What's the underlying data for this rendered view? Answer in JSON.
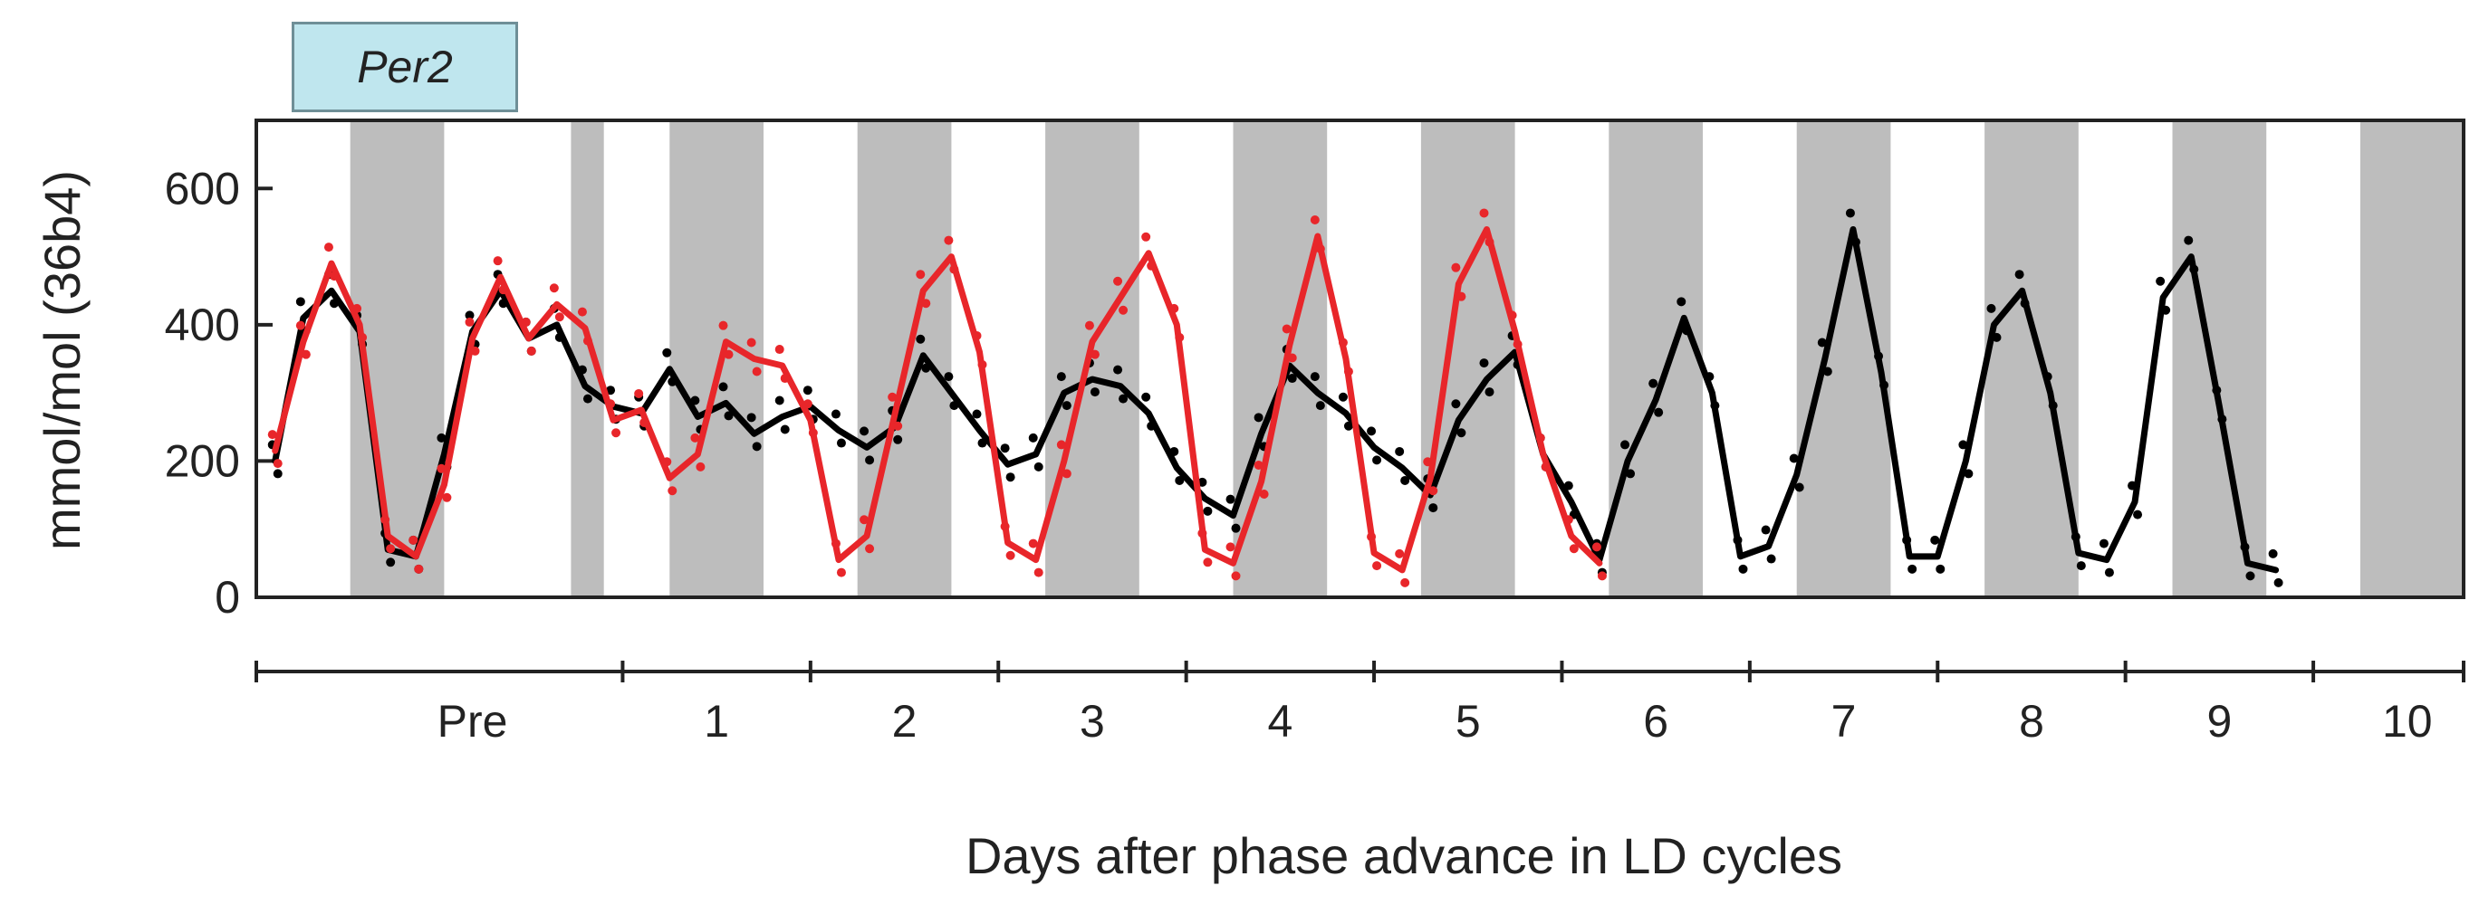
{
  "gene_label": "Per2",
  "chart_data": {
    "type": "line",
    "title": "",
    "ylabel": "mmol/mol (36b4)",
    "xlabel": "Days after phase advance in LD cycles",
    "ylim": [
      0,
      700
    ],
    "xlim": [
      -0.5,
      23.0
    ],
    "x_unit": "hours/4 index",
    "y_ticks": [
      0,
      200,
      400,
      600
    ],
    "day_labels": [
      {
        "label": "Pre",
        "x": 1.8
      },
      {
        "label": "1",
        "x": 4.4
      },
      {
        "label": "2",
        "x": 6.4
      },
      {
        "label": "3",
        "x": 8.4
      },
      {
        "label": "4",
        "x": 10.4
      },
      {
        "label": "5",
        "x": 12.4
      },
      {
        "label": "6",
        "x": 14.4
      },
      {
        "label": "7",
        "x": 16.4
      },
      {
        "label": "8",
        "x": 18.4
      },
      {
        "label": "9",
        "x": 20.4
      },
      {
        "label": "10",
        "x": 22.4
      }
    ],
    "day_ticks": [
      -0.5,
      3.4,
      5.4,
      7.4,
      9.4,
      11.4,
      13.4,
      15.4,
      17.4,
      19.4,
      21.4,
      23.0
    ],
    "dark_bands": [
      [
        0.5,
        1.5
      ],
      [
        2.85,
        3.2
      ],
      [
        3.9,
        4.9
      ],
      [
        5.9,
        6.9
      ],
      [
        7.9,
        8.9
      ],
      [
        9.9,
        10.9
      ],
      [
        11.9,
        12.9
      ],
      [
        13.9,
        14.9
      ],
      [
        15.9,
        16.9
      ],
      [
        17.9,
        18.9
      ],
      [
        19.9,
        20.9
      ],
      [
        21.9,
        23.0
      ]
    ],
    "series": [
      {
        "color": "#000000",
        "points": [
          [
            -0.3,
            200
          ],
          [
            0.0,
            410
          ],
          [
            0.3,
            450
          ],
          [
            0.6,
            390
          ],
          [
            0.9,
            70
          ],
          [
            1.2,
            60
          ],
          [
            1.5,
            210
          ],
          [
            1.8,
            390
          ],
          [
            2.1,
            450
          ],
          [
            2.4,
            380
          ],
          [
            2.7,
            400
          ],
          [
            3.0,
            310
          ],
          [
            3.3,
            280
          ],
          [
            3.6,
            270
          ],
          [
            3.9,
            335
          ],
          [
            4.2,
            265
          ],
          [
            4.5,
            285
          ],
          [
            4.8,
            240
          ],
          [
            5.1,
            265
          ],
          [
            5.4,
            280
          ],
          [
            5.7,
            245
          ],
          [
            6.0,
            220
          ],
          [
            6.3,
            250
          ],
          [
            6.6,
            355
          ],
          [
            6.9,
            300
          ],
          [
            7.2,
            245
          ],
          [
            7.5,
            195
          ],
          [
            7.8,
            210
          ],
          [
            8.1,
            300
          ],
          [
            8.4,
            320
          ],
          [
            8.7,
            310
          ],
          [
            9.0,
            270
          ],
          [
            9.3,
            190
          ],
          [
            9.6,
            145
          ],
          [
            9.9,
            120
          ],
          [
            10.2,
            240
          ],
          [
            10.5,
            340
          ],
          [
            10.8,
            300
          ],
          [
            11.1,
            270
          ],
          [
            11.4,
            220
          ],
          [
            11.7,
            190
          ],
          [
            12.0,
            150
          ],
          [
            12.3,
            260
          ],
          [
            12.6,
            320
          ],
          [
            12.9,
            360
          ],
          [
            13.2,
            210
          ],
          [
            13.5,
            140
          ],
          [
            13.8,
            55
          ],
          [
            14.1,
            200
          ],
          [
            14.4,
            290
          ],
          [
            14.7,
            410
          ],
          [
            15.0,
            300
          ],
          [
            15.3,
            60
          ],
          [
            15.6,
            75
          ],
          [
            15.9,
            180
          ],
          [
            16.2,
            350
          ],
          [
            16.5,
            540
          ],
          [
            16.8,
            330
          ],
          [
            17.1,
            60
          ],
          [
            17.4,
            60
          ],
          [
            17.7,
            200
          ],
          [
            18.0,
            400
          ],
          [
            18.3,
            450
          ],
          [
            18.6,
            300
          ],
          [
            18.9,
            65
          ],
          [
            19.2,
            55
          ],
          [
            19.5,
            140
          ],
          [
            19.8,
            440
          ],
          [
            20.1,
            500
          ],
          [
            20.4,
            280
          ],
          [
            20.7,
            50
          ],
          [
            21.0,
            40
          ]
        ]
      },
      {
        "color": "#e8262a",
        "points": [
          [
            -0.3,
            215
          ],
          [
            0.0,
            375
          ],
          [
            0.3,
            490
          ],
          [
            0.6,
            400
          ],
          [
            0.9,
            90
          ],
          [
            1.2,
            60
          ],
          [
            1.5,
            165
          ],
          [
            1.8,
            380
          ],
          [
            2.1,
            470
          ],
          [
            2.4,
            380
          ],
          [
            2.7,
            430
          ],
          [
            3.0,
            395
          ],
          [
            3.3,
            260
          ],
          [
            3.6,
            275
          ],
          [
            3.9,
            175
          ],
          [
            4.2,
            210
          ],
          [
            4.5,
            375
          ],
          [
            4.8,
            350
          ],
          [
            5.1,
            340
          ],
          [
            5.4,
            260
          ],
          [
            5.7,
            55
          ],
          [
            6.0,
            90
          ],
          [
            6.3,
            270
          ],
          [
            6.6,
            450
          ],
          [
            6.9,
            500
          ],
          [
            7.2,
            360
          ],
          [
            7.5,
            80
          ],
          [
            7.8,
            55
          ],
          [
            8.1,
            200
          ],
          [
            8.4,
            375
          ],
          [
            8.7,
            440
          ],
          [
            9.0,
            505
          ],
          [
            9.3,
            400
          ],
          [
            9.6,
            70
          ],
          [
            9.9,
            50
          ],
          [
            10.2,
            170
          ],
          [
            10.5,
            370
          ],
          [
            10.8,
            530
          ],
          [
            11.1,
            350
          ],
          [
            11.4,
            65
          ],
          [
            11.7,
            40
          ],
          [
            12.0,
            175
          ],
          [
            12.3,
            460
          ],
          [
            12.6,
            540
          ],
          [
            12.9,
            390
          ],
          [
            13.2,
            210
          ],
          [
            13.5,
            90
          ],
          [
            13.8,
            50
          ]
        ]
      }
    ]
  }
}
